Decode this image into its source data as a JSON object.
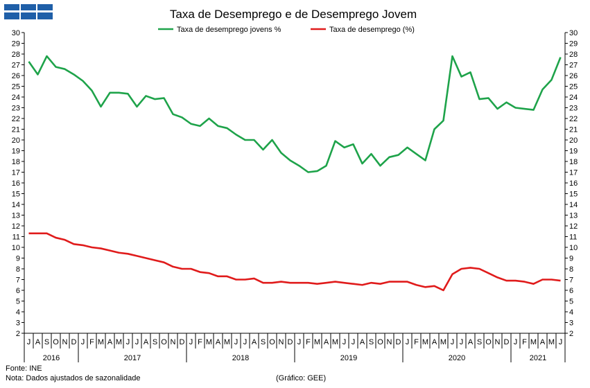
{
  "chart_data": {
    "type": "line",
    "title": "Taxa de Desemprego e de Desemprego Jovem",
    "ylim": [
      2,
      30
    ],
    "ytick_step": 1,
    "grid": false,
    "legend_position": "top-center",
    "months": [
      "J",
      "A",
      "S",
      "O",
      "N",
      "D",
      "J",
      "F",
      "M",
      "A",
      "M",
      "J",
      "J",
      "A",
      "S",
      "O",
      "N",
      "D",
      "J",
      "F",
      "M",
      "A",
      "M",
      "J",
      "J",
      "A",
      "S",
      "O",
      "N",
      "D",
      "J",
      "F",
      "M",
      "A",
      "M",
      "J",
      "J",
      "A",
      "S",
      "O",
      "N",
      "D",
      "J",
      "F",
      "M",
      "A",
      "M",
      "J",
      "J",
      "A",
      "S",
      "O",
      "N",
      "D",
      "J",
      "F",
      "M",
      "A",
      "M",
      "J"
    ],
    "years": [
      {
        "label": "2016",
        "start": 0,
        "count": 6
      },
      {
        "label": "2017",
        "start": 6,
        "count": 12
      },
      {
        "label": "2018",
        "start": 18,
        "count": 12
      },
      {
        "label": "2019",
        "start": 30,
        "count": 12
      },
      {
        "label": "2020",
        "start": 42,
        "count": 12
      },
      {
        "label": "2021",
        "start": 54,
        "count": 6
      }
    ],
    "series": [
      {
        "name": "Taxa de desemprego jovens %",
        "color": "#1ea34a",
        "values": [
          27.3,
          26.1,
          27.8,
          26.8,
          26.6,
          26.1,
          25.5,
          24.6,
          23.1,
          24.4,
          24.4,
          24.3,
          23.1,
          24.1,
          23.8,
          23.9,
          22.4,
          22.1,
          21.5,
          21.3,
          22.0,
          21.3,
          21.1,
          20.5,
          20.0,
          20.0,
          19.1,
          20.0,
          18.8,
          18.1,
          17.6,
          17.0,
          17.1,
          17.6,
          19.9,
          19.3,
          19.6,
          17.8,
          18.7,
          17.6,
          18.4,
          18.6,
          19.3,
          18.7,
          18.1,
          21.0,
          21.8,
          27.8,
          25.9,
          26.3,
          23.8,
          23.9,
          22.9,
          23.5,
          23.0,
          22.9,
          22.8,
          24.7,
          25.6,
          27.7
        ]
      },
      {
        "name": "Taxa de desemprego (%)",
        "color": "#e01b1b",
        "values": [
          11.3,
          11.3,
          11.3,
          10.9,
          10.7,
          10.3,
          10.2,
          10.0,
          9.9,
          9.7,
          9.5,
          9.4,
          9.2,
          9.0,
          8.8,
          8.6,
          8.2,
          8.0,
          8.0,
          7.7,
          7.6,
          7.3,
          7.3,
          7.0,
          7.0,
          7.1,
          6.7,
          6.7,
          6.8,
          6.7,
          6.7,
          6.7,
          6.6,
          6.7,
          6.8,
          6.7,
          6.6,
          6.5,
          6.7,
          6.6,
          6.8,
          6.8,
          6.8,
          6.5,
          6.3,
          6.4,
          6.0,
          7.5,
          8.0,
          8.1,
          8.0,
          7.6,
          7.2,
          6.9,
          6.9,
          6.8,
          6.6,
          7.0,
          7.0,
          6.9
        ]
      }
    ]
  },
  "footer": {
    "source": "Fonte: INE",
    "note": "Nota: Dados ajustados de sazonalidade",
    "credit": "(Gráfico: GEE)"
  }
}
